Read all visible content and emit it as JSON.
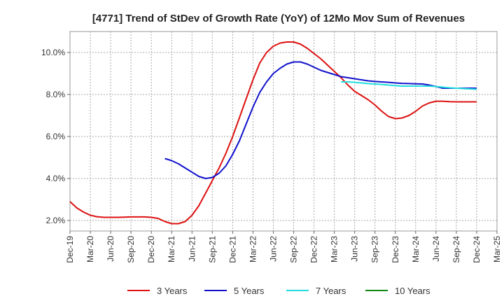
{
  "chart_data": {
    "type": "line",
    "title": "[4771]  Trend of StDev of Growth Rate (YoY) of 12Mo Mov Sum of Revenues",
    "xlabel": "",
    "ylabel": "",
    "x_ticks": [
      "Dec-19",
      "Mar-20",
      "Jun-20",
      "Sep-20",
      "Dec-20",
      "Mar-21",
      "Jun-21",
      "Sep-21",
      "Dec-21",
      "Mar-22",
      "Jun-22",
      "Sep-22",
      "Dec-22",
      "Mar-23",
      "Jun-23",
      "Sep-23",
      "Dec-23",
      "Mar-24",
      "Jun-24",
      "Sep-24",
      "Dec-24",
      "Mar-25"
    ],
    "y_ticks": [
      "2.0%",
      "4.0%",
      "6.0%",
      "8.0%",
      "10.0%"
    ],
    "y_tick_values": [
      2,
      4,
      6,
      8,
      10
    ],
    "ylim": [
      1.5,
      11.0
    ],
    "x_range_months": [
      0,
      63
    ],
    "grid": true,
    "legend_position": "bottom",
    "series": [
      {
        "name": "3 Years",
        "color": "#dd1111",
        "x_months": [
          0,
          1,
          2,
          3,
          4,
          5,
          6,
          7,
          8,
          9,
          10,
          11,
          12,
          13,
          14,
          15,
          16,
          17,
          18,
          19,
          20,
          21,
          22,
          23,
          24,
          25,
          26,
          27,
          28,
          29,
          30,
          31,
          32,
          33,
          34,
          35,
          36,
          37,
          38,
          39,
          40,
          41,
          42,
          43,
          44,
          45,
          46,
          47,
          48,
          49,
          50,
          51,
          52,
          53,
          54,
          55,
          56,
          57,
          60
        ],
        "values": [
          2.9,
          2.6,
          2.4,
          2.25,
          2.18,
          2.15,
          2.15,
          2.15,
          2.16,
          2.17,
          2.17,
          2.17,
          2.15,
          2.1,
          1.95,
          1.85,
          1.85,
          1.95,
          2.25,
          2.7,
          3.3,
          3.9,
          4.5,
          5.2,
          6.0,
          6.9,
          7.8,
          8.7,
          9.5,
          10.0,
          10.3,
          10.45,
          10.5,
          10.5,
          10.4,
          10.2,
          9.95,
          9.7,
          9.4,
          9.1,
          8.8,
          8.45,
          8.15,
          7.95,
          7.75,
          7.5,
          7.2,
          6.95,
          6.85,
          6.88,
          7.0,
          7.2,
          7.45,
          7.6,
          7.68,
          7.68,
          7.66,
          7.65,
          7.65
        ]
      },
      {
        "name": "5 Years",
        "color": "#1111cc",
        "x_months": [
          14,
          15,
          16,
          17,
          18,
          19,
          20,
          21,
          22,
          23,
          24,
          25,
          26,
          27,
          28,
          29,
          30,
          31,
          32,
          33,
          34,
          35,
          36,
          37,
          38,
          39,
          40,
          41,
          42,
          43,
          44,
          45,
          46,
          47,
          48,
          49,
          50,
          51,
          52,
          53,
          54,
          55,
          56,
          57,
          60
        ],
        "values": [
          4.95,
          4.85,
          4.7,
          4.5,
          4.3,
          4.1,
          4.0,
          4.05,
          4.25,
          4.6,
          5.15,
          5.8,
          6.6,
          7.4,
          8.1,
          8.6,
          9.0,
          9.25,
          9.45,
          9.55,
          9.55,
          9.45,
          9.3,
          9.15,
          9.05,
          8.95,
          8.85,
          8.8,
          8.75,
          8.7,
          8.65,
          8.62,
          8.6,
          8.58,
          8.55,
          8.53,
          8.52,
          8.51,
          8.5,
          8.45,
          8.38,
          8.3,
          8.3,
          8.3,
          8.3
        ]
      },
      {
        "name": "7 Years",
        "color": "#22dddd",
        "x_months": [
          40,
          41,
          42,
          43,
          44,
          45,
          46,
          47,
          48,
          49,
          50,
          51,
          52,
          53,
          54,
          55,
          56,
          57,
          60
        ],
        "values": [
          8.6,
          8.6,
          8.58,
          8.55,
          8.52,
          8.5,
          8.48,
          8.45,
          8.42,
          8.4,
          8.4,
          8.4,
          8.4,
          8.4,
          8.38,
          8.35,
          8.32,
          8.3,
          8.25
        ]
      },
      {
        "name": "10 Years",
        "color": "#118811",
        "x_months": [],
        "values": []
      }
    ]
  }
}
